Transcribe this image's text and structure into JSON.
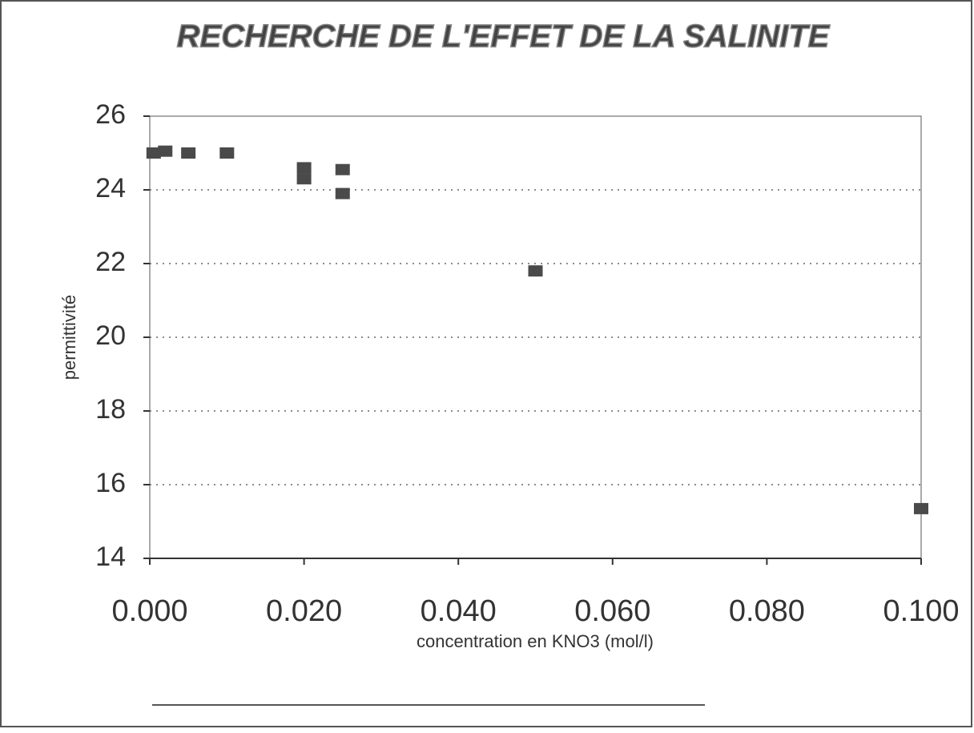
{
  "chart_data": {
    "type": "scatter",
    "title": "RECHERCHE DE L'EFFET DE LA SALINITE",
    "x_label": "concentration en KNO3 (mol/l)",
    "y_label": "permittivité",
    "series": [
      {
        "name": "permittivité",
        "color": "#4a4a4a",
        "x": [
          0.0005,
          0.002,
          0.005,
          0.01,
          0.02,
          0.02,
          0.025,
          0.025,
          0.05,
          0.1
        ],
        "values": [
          25.0,
          25.05,
          25.0,
          25.0,
          24.6,
          24.3,
          24.55,
          23.9,
          21.8,
          15.35
        ]
      }
    ],
    "xlim": [
      0,
      0.1
    ],
    "xticks": [
      {
        "value": 0,
        "label": "0.000"
      },
      {
        "value": 0.02,
        "label": "0.020"
      },
      {
        "value": 0.04,
        "label": "0.040"
      },
      {
        "value": 0.06,
        "label": "0.060"
      },
      {
        "value": 0.08,
        "label": "0.080"
      },
      {
        "value": 0.1,
        "label": "0.100"
      }
    ],
    "ylim": [
      14,
      26
    ],
    "yticks": [
      14,
      16,
      18,
      20,
      22,
      24,
      26
    ],
    "grid": true
  }
}
